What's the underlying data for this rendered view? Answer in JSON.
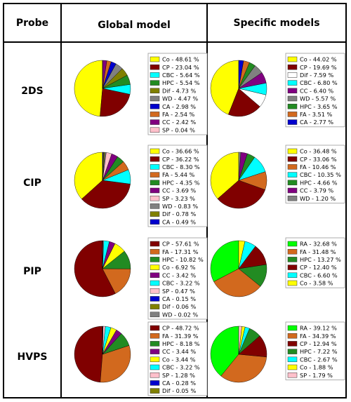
{
  "header": {
    "probe": "Probe",
    "global": "Global model",
    "specific": "Specific models"
  },
  "chart_data": [
    {
      "type": "pie",
      "probe": "2DS",
      "model": "Global model",
      "slices": [
        {
          "label": "Co",
          "value": 48.61,
          "color": "#ffff00"
        },
        {
          "label": "CP",
          "value": 23.04,
          "color": "#800000"
        },
        {
          "label": "CBC",
          "value": 5.64,
          "color": "#00ffff"
        },
        {
          "label": "HPC",
          "value": 5.54,
          "color": "#228b22"
        },
        {
          "label": "Dif",
          "value": 4.73,
          "color": "#808000"
        },
        {
          "label": "WD",
          "value": 4.47,
          "color": "#808080"
        },
        {
          "label": "CA",
          "value": 2.98,
          "color": "#0000cd"
        },
        {
          "label": "FA",
          "value": 2.54,
          "color": "#d2691e"
        },
        {
          "label": "CC",
          "value": 2.42,
          "color": "#800080"
        },
        {
          "label": "SP",
          "value": 0.04,
          "color": "#ffc0cb"
        }
      ]
    },
    {
      "type": "pie",
      "probe": "2DS",
      "model": "Specific models",
      "slices": [
        {
          "label": "Co",
          "value": 44.02,
          "color": "#ffff00"
        },
        {
          "label": "CP",
          "value": 19.69,
          "color": "#800000"
        },
        {
          "label": "Dif",
          "value": 7.59,
          "color": "#ffffff"
        },
        {
          "label": "CBC",
          "value": 6.8,
          "color": "#00ffff"
        },
        {
          "label": "CC",
          "value": 6.4,
          "color": "#800080"
        },
        {
          "label": "WD",
          "value": 5.57,
          "color": "#808080"
        },
        {
          "label": "HPC",
          "value": 3.65,
          "color": "#228b22"
        },
        {
          "label": "FA",
          "value": 3.51,
          "color": "#d2691e"
        },
        {
          "label": "CA",
          "value": 2.77,
          "color": "#0000cd"
        }
      ]
    },
    {
      "type": "pie",
      "probe": "CIP",
      "model": "Global model",
      "slices": [
        {
          "label": "Co",
          "value": 36.66,
          "color": "#ffff00"
        },
        {
          "label": "CP",
          "value": 36.22,
          "color": "#800000"
        },
        {
          "label": "CBC",
          "value": 8.3,
          "color": "#00ffff"
        },
        {
          "label": "FA",
          "value": 5.44,
          "color": "#d2691e"
        },
        {
          "label": "HPC",
          "value": 4.35,
          "color": "#228b22"
        },
        {
          "label": "CC",
          "value": 3.69,
          "color": "#800080"
        },
        {
          "label": "SP",
          "value": 3.23,
          "color": "#ffc0cb"
        },
        {
          "label": "WD",
          "value": 0.83,
          "color": "#808080"
        },
        {
          "label": "Dif",
          "value": 0.78,
          "color": "#808000"
        },
        {
          "label": "CA",
          "value": 0.49,
          "color": "#0000cd"
        }
      ]
    },
    {
      "type": "pie",
      "probe": "CIP",
      "model": "Specific models",
      "slices": [
        {
          "label": "Co",
          "value": 36.48,
          "color": "#ffff00"
        },
        {
          "label": "CP",
          "value": 33.06,
          "color": "#800000"
        },
        {
          "label": "FA",
          "value": 10.46,
          "color": "#d2691e"
        },
        {
          "label": "CBC",
          "value": 10.35,
          "color": "#00ffff"
        },
        {
          "label": "HPC",
          "value": 4.66,
          "color": "#228b22"
        },
        {
          "label": "CC",
          "value": 3.79,
          "color": "#800080"
        },
        {
          "label": "WD",
          "value": 1.2,
          "color": "#808080"
        }
      ]
    },
    {
      "type": "pie",
      "probe": "PIP",
      "model": "Global model",
      "slices": [
        {
          "label": "CP",
          "value": 57.61,
          "color": "#800000"
        },
        {
          "label": "FA",
          "value": 17.31,
          "color": "#d2691e"
        },
        {
          "label": "HPC",
          "value": 10.82,
          "color": "#228b22"
        },
        {
          "label": "Co",
          "value": 6.92,
          "color": "#ffff00"
        },
        {
          "label": "CC",
          "value": 3.42,
          "color": "#800080"
        },
        {
          "label": "CBC",
          "value": 3.22,
          "color": "#00ffff"
        },
        {
          "label": "SP",
          "value": 0.47,
          "color": "#ffc0cb"
        },
        {
          "label": "CA",
          "value": 0.15,
          "color": "#0000cd"
        },
        {
          "label": "Dif",
          "value": 0.06,
          "color": "#808000"
        },
        {
          "label": "WD",
          "value": 0.02,
          "color": "#808080"
        }
      ]
    },
    {
      "type": "pie",
      "probe": "PIP",
      "model": "Specific models",
      "slices": [
        {
          "label": "RA",
          "value": 32.68,
          "color": "#00ff00"
        },
        {
          "label": "FA",
          "value": 31.48,
          "color": "#d2691e"
        },
        {
          "label": "HPC",
          "value": 13.27,
          "color": "#228b22"
        },
        {
          "label": "CP",
          "value": 12.4,
          "color": "#800000"
        },
        {
          "label": "CBC",
          "value": 6.6,
          "color": "#00ffff"
        },
        {
          "label": "Co",
          "value": 3.58,
          "color": "#ffff00"
        }
      ]
    },
    {
      "type": "pie",
      "probe": "HVPS",
      "model": "Global model",
      "slices": [
        {
          "label": "CP",
          "value": 48.72,
          "color": "#800000"
        },
        {
          "label": "FA",
          "value": 31.39,
          "color": "#d2691e"
        },
        {
          "label": "HPC",
          "value": 8.18,
          "color": "#228b22"
        },
        {
          "label": "CC",
          "value": 3.44,
          "color": "#800080"
        },
        {
          "label": "Co",
          "value": 3.44,
          "color": "#ffff00"
        },
        {
          "label": "CBC",
          "value": 3.22,
          "color": "#00ffff"
        },
        {
          "label": "SP",
          "value": 1.28,
          "color": "#ffc0cb"
        },
        {
          "label": "CA",
          "value": 0.28,
          "color": "#0000cd"
        },
        {
          "label": "Dif",
          "value": 0.05,
          "color": "#808000"
        }
      ]
    },
    {
      "type": "pie",
      "probe": "HVPS",
      "model": "Specific models",
      "slices": [
        {
          "label": "RA",
          "value": 39.12,
          "color": "#00ff00"
        },
        {
          "label": "FA",
          "value": 34.39,
          "color": "#d2691e"
        },
        {
          "label": "CP",
          "value": 12.94,
          "color": "#800000"
        },
        {
          "label": "HPC",
          "value": 7.22,
          "color": "#228b22"
        },
        {
          "label": "CBC",
          "value": 2.67,
          "color": "#00ffff"
        },
        {
          "label": "Co",
          "value": 1.88,
          "color": "#ffff00"
        },
        {
          "label": "SP",
          "value": 1.79,
          "color": "#ffc0cb"
        }
      ]
    }
  ]
}
